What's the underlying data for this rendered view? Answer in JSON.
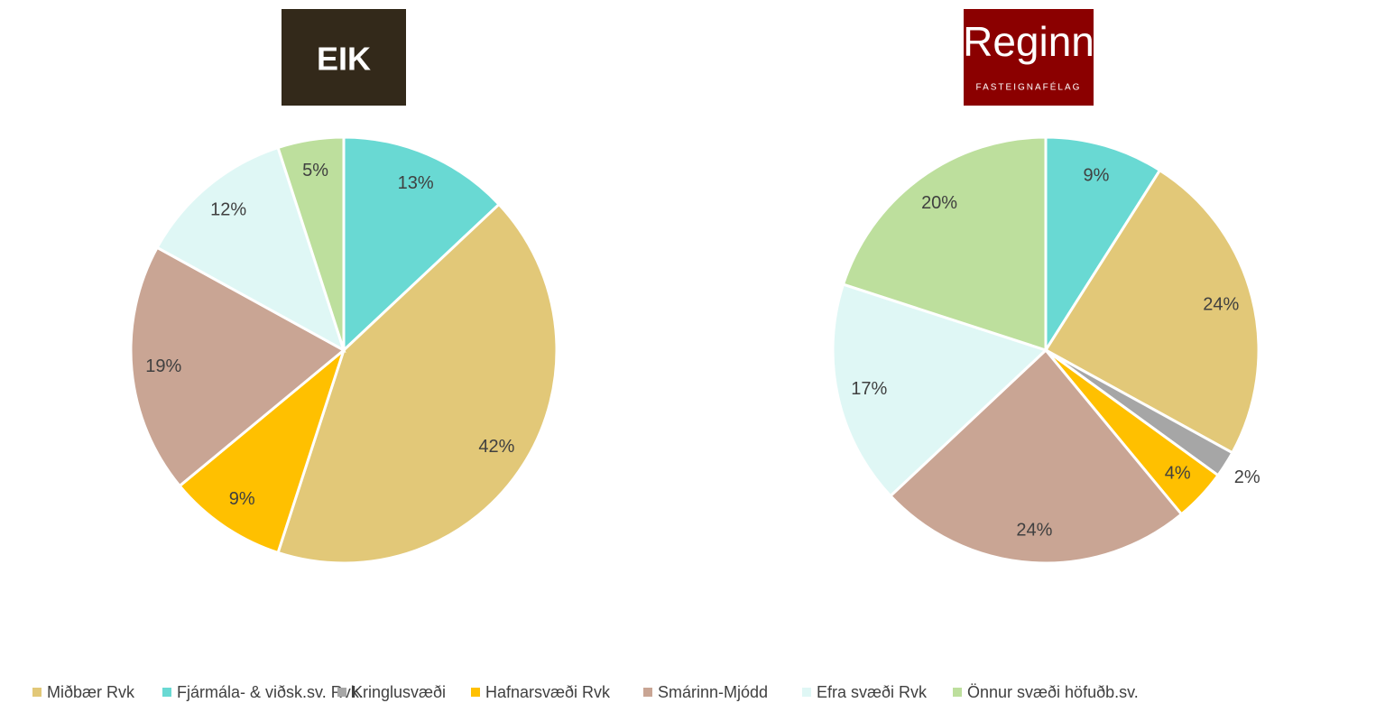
{
  "chart_data": [
    {
      "type": "pie",
      "logo": {
        "name": "EIK"
      },
      "categories": [
        "Fjármála- & viðsk.sv. Rvk.",
        "Miðbær Rvk",
        "Hafnarsvæði Rvk",
        "Smárinn-Mjódd",
        "Efra svæði Rvk",
        "Önnur svæði höfuðb.sv."
      ],
      "values": [
        13,
        42,
        9,
        19,
        12,
        5
      ],
      "value_labels": [
        "13%",
        "42%",
        "9%",
        "19%",
        "12%",
        "5%"
      ],
      "colors": [
        "#69d9d3",
        "#e2c878",
        "#ffc000",
        "#c9a594",
        "#dff7f5",
        "#bddf9d"
      ]
    },
    {
      "type": "pie",
      "logo": {
        "name": "Reginn",
        "tagline": "FASTEIGNAFÉLAG"
      },
      "categories": [
        "Fjármála- & viðsk.sv. Rvk.",
        "Miðbær Rvk",
        "Kringlusvæði",
        "Hafnarsvæði Rvk",
        "Smárinn-Mjódd",
        "Efra svæði Rvk",
        "Önnur svæði höfuðb.sv."
      ],
      "values": [
        9,
        24,
        2,
        4,
        24,
        17,
        20
      ],
      "value_labels": [
        "9%",
        "24%",
        "2%",
        "4%",
        "24%",
        "17%",
        "20%"
      ],
      "colors": [
        "#69d9d3",
        "#e2c878",
        "#a6a6a6",
        "#ffc000",
        "#c9a594",
        "#dff7f5",
        "#bddf9d"
      ]
    }
  ],
  "legend": {
    "items": [
      {
        "name": "Miðbær Rvk",
        "color": "#e2c878"
      },
      {
        "name": "Fjármála- & viðsk.sv. Rvk.",
        "color": "#69d9d3"
      },
      {
        "name": "Kringlusvæði",
        "color": "#a6a6a6"
      },
      {
        "name": "Hafnarsvæði Rvk",
        "color": "#ffc000"
      },
      {
        "name": "Smárinn-Mjódd",
        "color": "#c9a594"
      },
      {
        "name": "Efra svæði Rvk",
        "color": "#dff7f5"
      },
      {
        "name": "Önnur svæði höfuðb.sv.",
        "color": "#bddf9d"
      }
    ]
  }
}
